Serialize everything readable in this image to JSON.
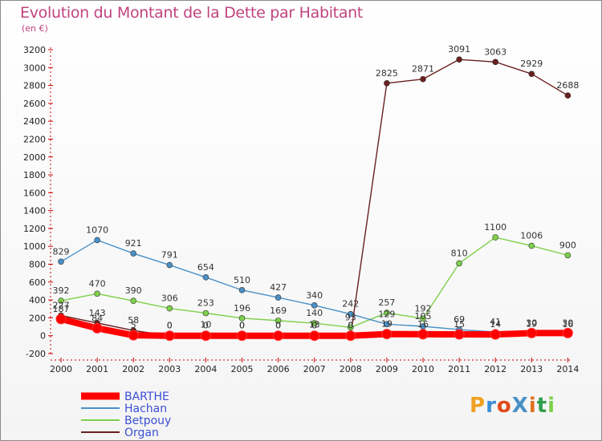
{
  "chart_data": {
    "type": "line",
    "title": "Evolution du Montant de la Dette par Habitant",
    "subtitle": "(en €)",
    "x": [
      "2000",
      "2001",
      "2002",
      "2003",
      "2004",
      "2005",
      "2006",
      "2007",
      "2008",
      "2009",
      "2010",
      "2011",
      "2012",
      "2013",
      "2014"
    ],
    "ylim": [
      -200,
      3200
    ],
    "yticks": [
      -200,
      0,
      200,
      400,
      600,
      800,
      1000,
      1200,
      1400,
      1600,
      1800,
      2000,
      2200,
      2400,
      2600,
      2800,
      3000,
      3200
    ],
    "grid": false,
    "legend_position": "bottom-left",
    "series": [
      {
        "name": "BARTHE",
        "color": "#ff0000",
        "values": [
          187,
          84,
          5,
          0,
          0,
          0,
          0,
          0,
          0,
          19,
          16,
          15,
          14,
          30,
          30
        ],
        "labels": [
          "187",
          "84",
          "5",
          "0",
          "0",
          "0",
          "0",
          "0",
          "0",
          "19",
          "16",
          "15",
          "14",
          "30",
          "30"
        ]
      },
      {
        "name": "Hachan",
        "color": "#4a90c6",
        "values": [
          829,
          1070,
          921,
          791,
          654,
          510,
          427,
          340,
          242,
          129,
          105,
          69,
          41,
          19,
          16
        ],
        "labels": [
          "829",
          "1070",
          "921",
          "791",
          "654",
          "510",
          "427",
          "340",
          "242",
          "129",
          "105",
          "69",
          "41",
          "19",
          "16"
        ]
      },
      {
        "name": "Betpouy",
        "color": "#7ed04b",
        "values": [
          392,
          470,
          390,
          306,
          253,
          196,
          169,
          140,
          93,
          257,
          192,
          810,
          1100,
          1006,
          900
        ],
        "labels": [
          "392",
          "470",
          "390",
          "306",
          "253",
          "196",
          "169",
          "140",
          "93",
          "257",
          "192",
          "810",
          "1100",
          "1006",
          "900"
        ]
      },
      {
        "name": "Organ",
        "color": "#6b1f1f",
        "values": [
          227,
          143,
          58,
          0,
          10,
          0,
          0,
          13,
          0,
          2825,
          2871,
          3091,
          3063,
          2929,
          2688
        ],
        "labels": [
          "227",
          "143",
          "58",
          "0",
          "10",
          "0",
          "0",
          "13",
          "0",
          "2825",
          "2871",
          "3091",
          "3063",
          "2929",
          "2688"
        ]
      }
    ]
  },
  "logo": {
    "text": "ProXiti",
    "letters": [
      {
        "ch": "P",
        "color": "#f0a020"
      },
      {
        "ch": "r",
        "color": "#3b8fd6"
      },
      {
        "ch": "o",
        "color": "#e04a1a"
      },
      {
        "ch": "X",
        "color": "#4a90c6"
      },
      {
        "ch": "i",
        "color": "#e07020"
      },
      {
        "ch": "t",
        "color": "#2f9e4a"
      },
      {
        "ch": "i",
        "color": "#7ed04b"
      }
    ]
  }
}
